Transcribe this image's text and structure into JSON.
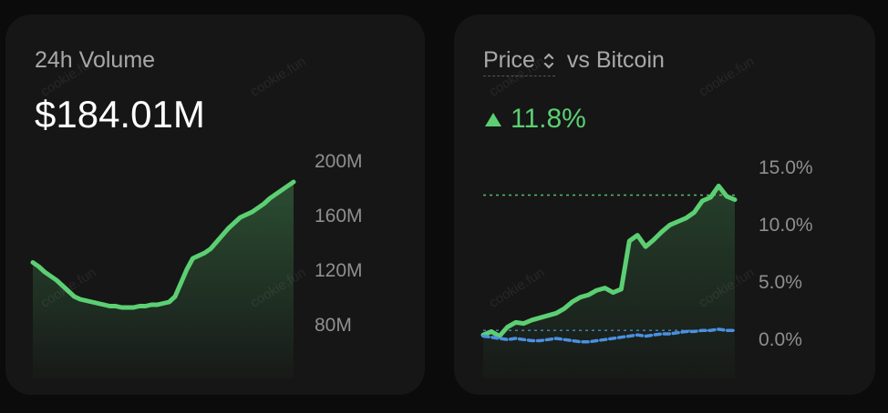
{
  "volume_card": {
    "title": "24h Volume",
    "value": "$184.01M"
  },
  "price_card": {
    "title_prefix": "Price",
    "title_suffix": "vs Bitcoin",
    "change": "11.8%"
  },
  "watermark": "cookie.fun",
  "colors": {
    "accent_green": "#5ccf73",
    "btc_blue": "#4a90e2",
    "card_bg": "#161616"
  },
  "chart_data": [
    {
      "type": "area",
      "ytick_labels": [
        "200M",
        "160M",
        "120M",
        "80M"
      ],
      "yticks": [
        200,
        160,
        120,
        80
      ],
      "ylim": [
        65,
        200
      ],
      "unit": "M",
      "series": [
        {
          "values": [
            125,
            122,
            118,
            115,
            112,
            108,
            104,
            100,
            98,
            97,
            96,
            95,
            94,
            93,
            93,
            92,
            92,
            92,
            93,
            93,
            94,
            94,
            95,
            96,
            100,
            110,
            120,
            128,
            130,
            132,
            135,
            140,
            145,
            150,
            154,
            158,
            160,
            162,
            165,
            168,
            172,
            175,
            178,
            181,
            184
          ]
        }
      ]
    },
    {
      "type": "line",
      "ytick_labels": [
        "15.0%",
        "10.0%",
        "5.0%",
        "0.0%"
      ],
      "yticks": [
        15,
        10,
        5,
        0
      ],
      "ylim": [
        -1,
        15
      ],
      "unit": "%",
      "series": [
        {
          "values": [
            0.3,
            0.6,
            0.2,
            1.0,
            1.4,
            1.3,
            1.6,
            1.8,
            2.0,
            2.2,
            2.6,
            3.2,
            3.6,
            3.8,
            4.2,
            4.4,
            4.0,
            4.3,
            8.5,
            9.0,
            8.0,
            8.6,
            9.3,
            9.9,
            10.2,
            10.5,
            11.0,
            12.0,
            12.3,
            13.3,
            12.4,
            12.1
          ]
        },
        {
          "values": [
            0.2,
            0.1,
            0.0,
            -0.1,
            0.0,
            -0.1,
            -0.2,
            -0.2,
            -0.1,
            0.0,
            -0.1,
            -0.2,
            -0.3,
            -0.3,
            -0.2,
            -0.1,
            0.0,
            0.1,
            0.2,
            0.3,
            0.2,
            0.3,
            0.4,
            0.4,
            0.5,
            0.6,
            0.6,
            0.7,
            0.7,
            0.8,
            0.7,
            0.7
          ]
        }
      ],
      "reference_lines": [
        12.5,
        0.7
      ]
    }
  ]
}
